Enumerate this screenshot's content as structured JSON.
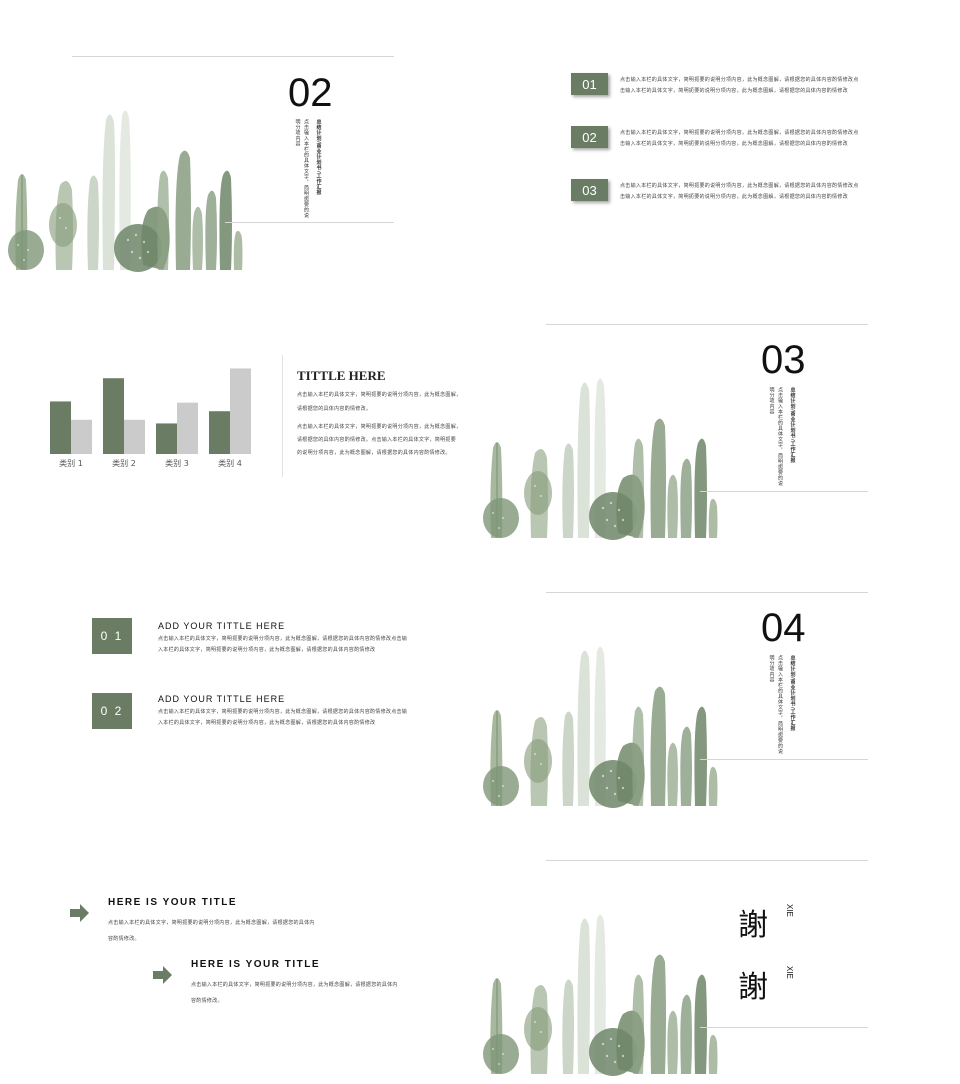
{
  "colors": {
    "accent": "#6a7c63",
    "bar_gray": "#cbcbcb",
    "line": "#d6d6d6",
    "cactus": "#7f9678"
  },
  "section_02": {
    "number": "02",
    "vtitle": "总结计划/商业计划书/工作汇报",
    "vbody": "点击输入本栏的具体文字，简明扼要的说明分项内容"
  },
  "list_items": [
    {
      "num": "01",
      "line1": "点击输入本栏的具体文字，简明扼要的说明分项内容，此为概念图解，请根据您的具体内容酌情修改点",
      "line2": "击输入本栏的具体文字，简明扼要的说明分项内容，此为概念图解，请根据您的具体内容酌情修改"
    },
    {
      "num": "02",
      "line1": "点击输入本栏的具体文字，简明扼要的说明分项内容，此为概念图解，请根据您的具体内容酌情修改点",
      "line2": "击输入本栏的具体文字，简明扼要的说明分项内容，此为概念图解，请根据您的具体内容酌情修改"
    },
    {
      "num": "03",
      "line1": "点击输入本栏的具体文字，简明扼要的说明分项内容，此为概念图解，请根据您的具体内容酌情修改点",
      "line2": "击输入本栏的具体文字，简明扼要的说明分项内容，此为概念图解，请根据您的具体内容酌情修改"
    }
  ],
  "chart_slide": {
    "title": "TITTLE HERE",
    "para1_l1": "点击输入本栏的具体文字，简明扼要的说明分项内容，此为概念图解，",
    "para1_l2": "请根据您的具体内容酌情修改。",
    "para2_l1": "点击输入本栏的具体文字，简明扼要的说明分项内容，此为概念图解，",
    "para2_l2": "请根据您的具体内容酌情修改。点击输入本栏的具体文字，简明扼要",
    "para2_l3": "的说明分项内容，此为概念图解，请根据您的具体内容酌情修改。"
  },
  "chart_data": {
    "type": "bar",
    "categories": [
      "类别 1",
      "类别 2",
      "类别 3",
      "类别 4"
    ],
    "series": [
      {
        "values": [
          4.3,
          6.2,
          2.5,
          3.5
        ]
      },
      {
        "values": [
          2.8,
          2.8,
          4.2,
          7.0
        ]
      }
    ],
    "ylim": [
      0,
      7.2
    ],
    "grid": false,
    "legend": "none"
  },
  "section_03": {
    "number": "03",
    "vtitle": "总结计划/商业计划书/工作汇报",
    "vbody": "点击输入本栏的具体文字，简明扼要的说明分项内容"
  },
  "add_title_slide": {
    "items": [
      {
        "num": "0 1",
        "heading": "ADD YOUR TITTLE HERE",
        "line1": "点击输入本栏的具体文字，简明扼要的说明分项内容，此为概念图解，请根据您的具体内容酌情修改点击输",
        "line2": "入本栏的具体文字，简明扼要的说明分项内容，此为概念图解，请根据您的具体内容酌情修改"
      },
      {
        "num": "0 2",
        "heading": "ADD YOUR TITTLE HERE",
        "line1": "点击输入本栏的具体文字，简明扼要的说明分项内容，此为概念图解，请根据您的具体内容酌情修改点击输",
        "line2": "入本栏的具体文字，简明扼要的说明分项内容，此为概念图解，请根据您的具体内容酌情修改"
      }
    ]
  },
  "section_04": {
    "number": "04",
    "vtitle": "总结计划/商业计划书/工作汇报",
    "vbody": "点击输入本栏的具体文字，简明扼要的说明分项内容"
  },
  "arrow_slide": {
    "items": [
      {
        "heading": "HERE IS YOUR TITLE",
        "line1": "点击输入本栏的具体文字，简明扼要的说明分项内容，此为概念图解，请根据您的具体内",
        "line2": "容酌情修改。"
      },
      {
        "heading": "HERE IS YOUR TITLE",
        "line1": "点击输入本栏的具体文字，简明扼要的说明分项内容，此为概念图解，请根据您的具体内",
        "line2": "容酌情修改。"
      }
    ]
  },
  "thanks_slide": {
    "char1": "謝",
    "char2": "謝",
    "roman1": "XIE",
    "roman2": "XIE"
  }
}
